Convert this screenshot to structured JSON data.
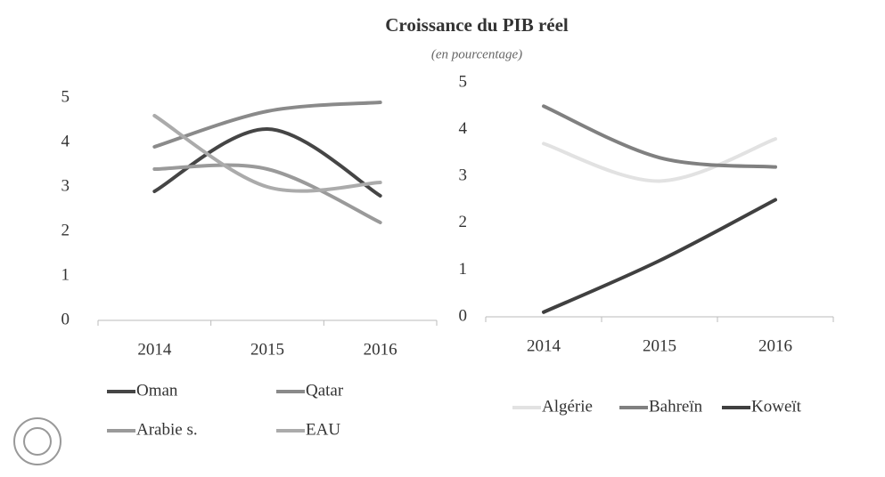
{
  "title": "Croissance du PIB réel",
  "subtitle": "(en pourcentage)",
  "chart_data": [
    {
      "type": "line",
      "categories": [
        "2014",
        "2015",
        "2016"
      ],
      "ylim": [
        0,
        5
      ],
      "yticks": [
        0,
        1,
        2,
        3,
        4,
        5
      ],
      "series": [
        {
          "name": "Oman",
          "color": "#454545",
          "values": [
            2.9,
            4.3,
            2.8
          ]
        },
        {
          "name": "Qatar",
          "color": "#8a8a8a",
          "values": [
            3.9,
            4.7,
            4.9
          ]
        },
        {
          "name": "Arabie s.",
          "color": "#9a9a9a",
          "values": [
            3.4,
            3.4,
            2.2
          ]
        },
        {
          "name": "EAU",
          "color": "#ababab",
          "values": [
            4.6,
            3.0,
            3.1
          ]
        }
      ]
    },
    {
      "type": "line",
      "categories": [
        "2014",
        "2015",
        "2016"
      ],
      "ylim": [
        0,
        5
      ],
      "yticks": [
        0,
        1,
        2,
        3,
        4,
        5
      ],
      "series": [
        {
          "name": "Algérie",
          "color": "#e2e2e2",
          "values": [
            3.7,
            2.9,
            3.8
          ]
        },
        {
          "name": "Bahreïn",
          "color": "#808080",
          "values": [
            4.5,
            3.4,
            3.2
          ]
        },
        {
          "name": "Koweït",
          "color": "#404040",
          "values": [
            0.1,
            1.2,
            2.5
          ]
        }
      ]
    }
  ]
}
